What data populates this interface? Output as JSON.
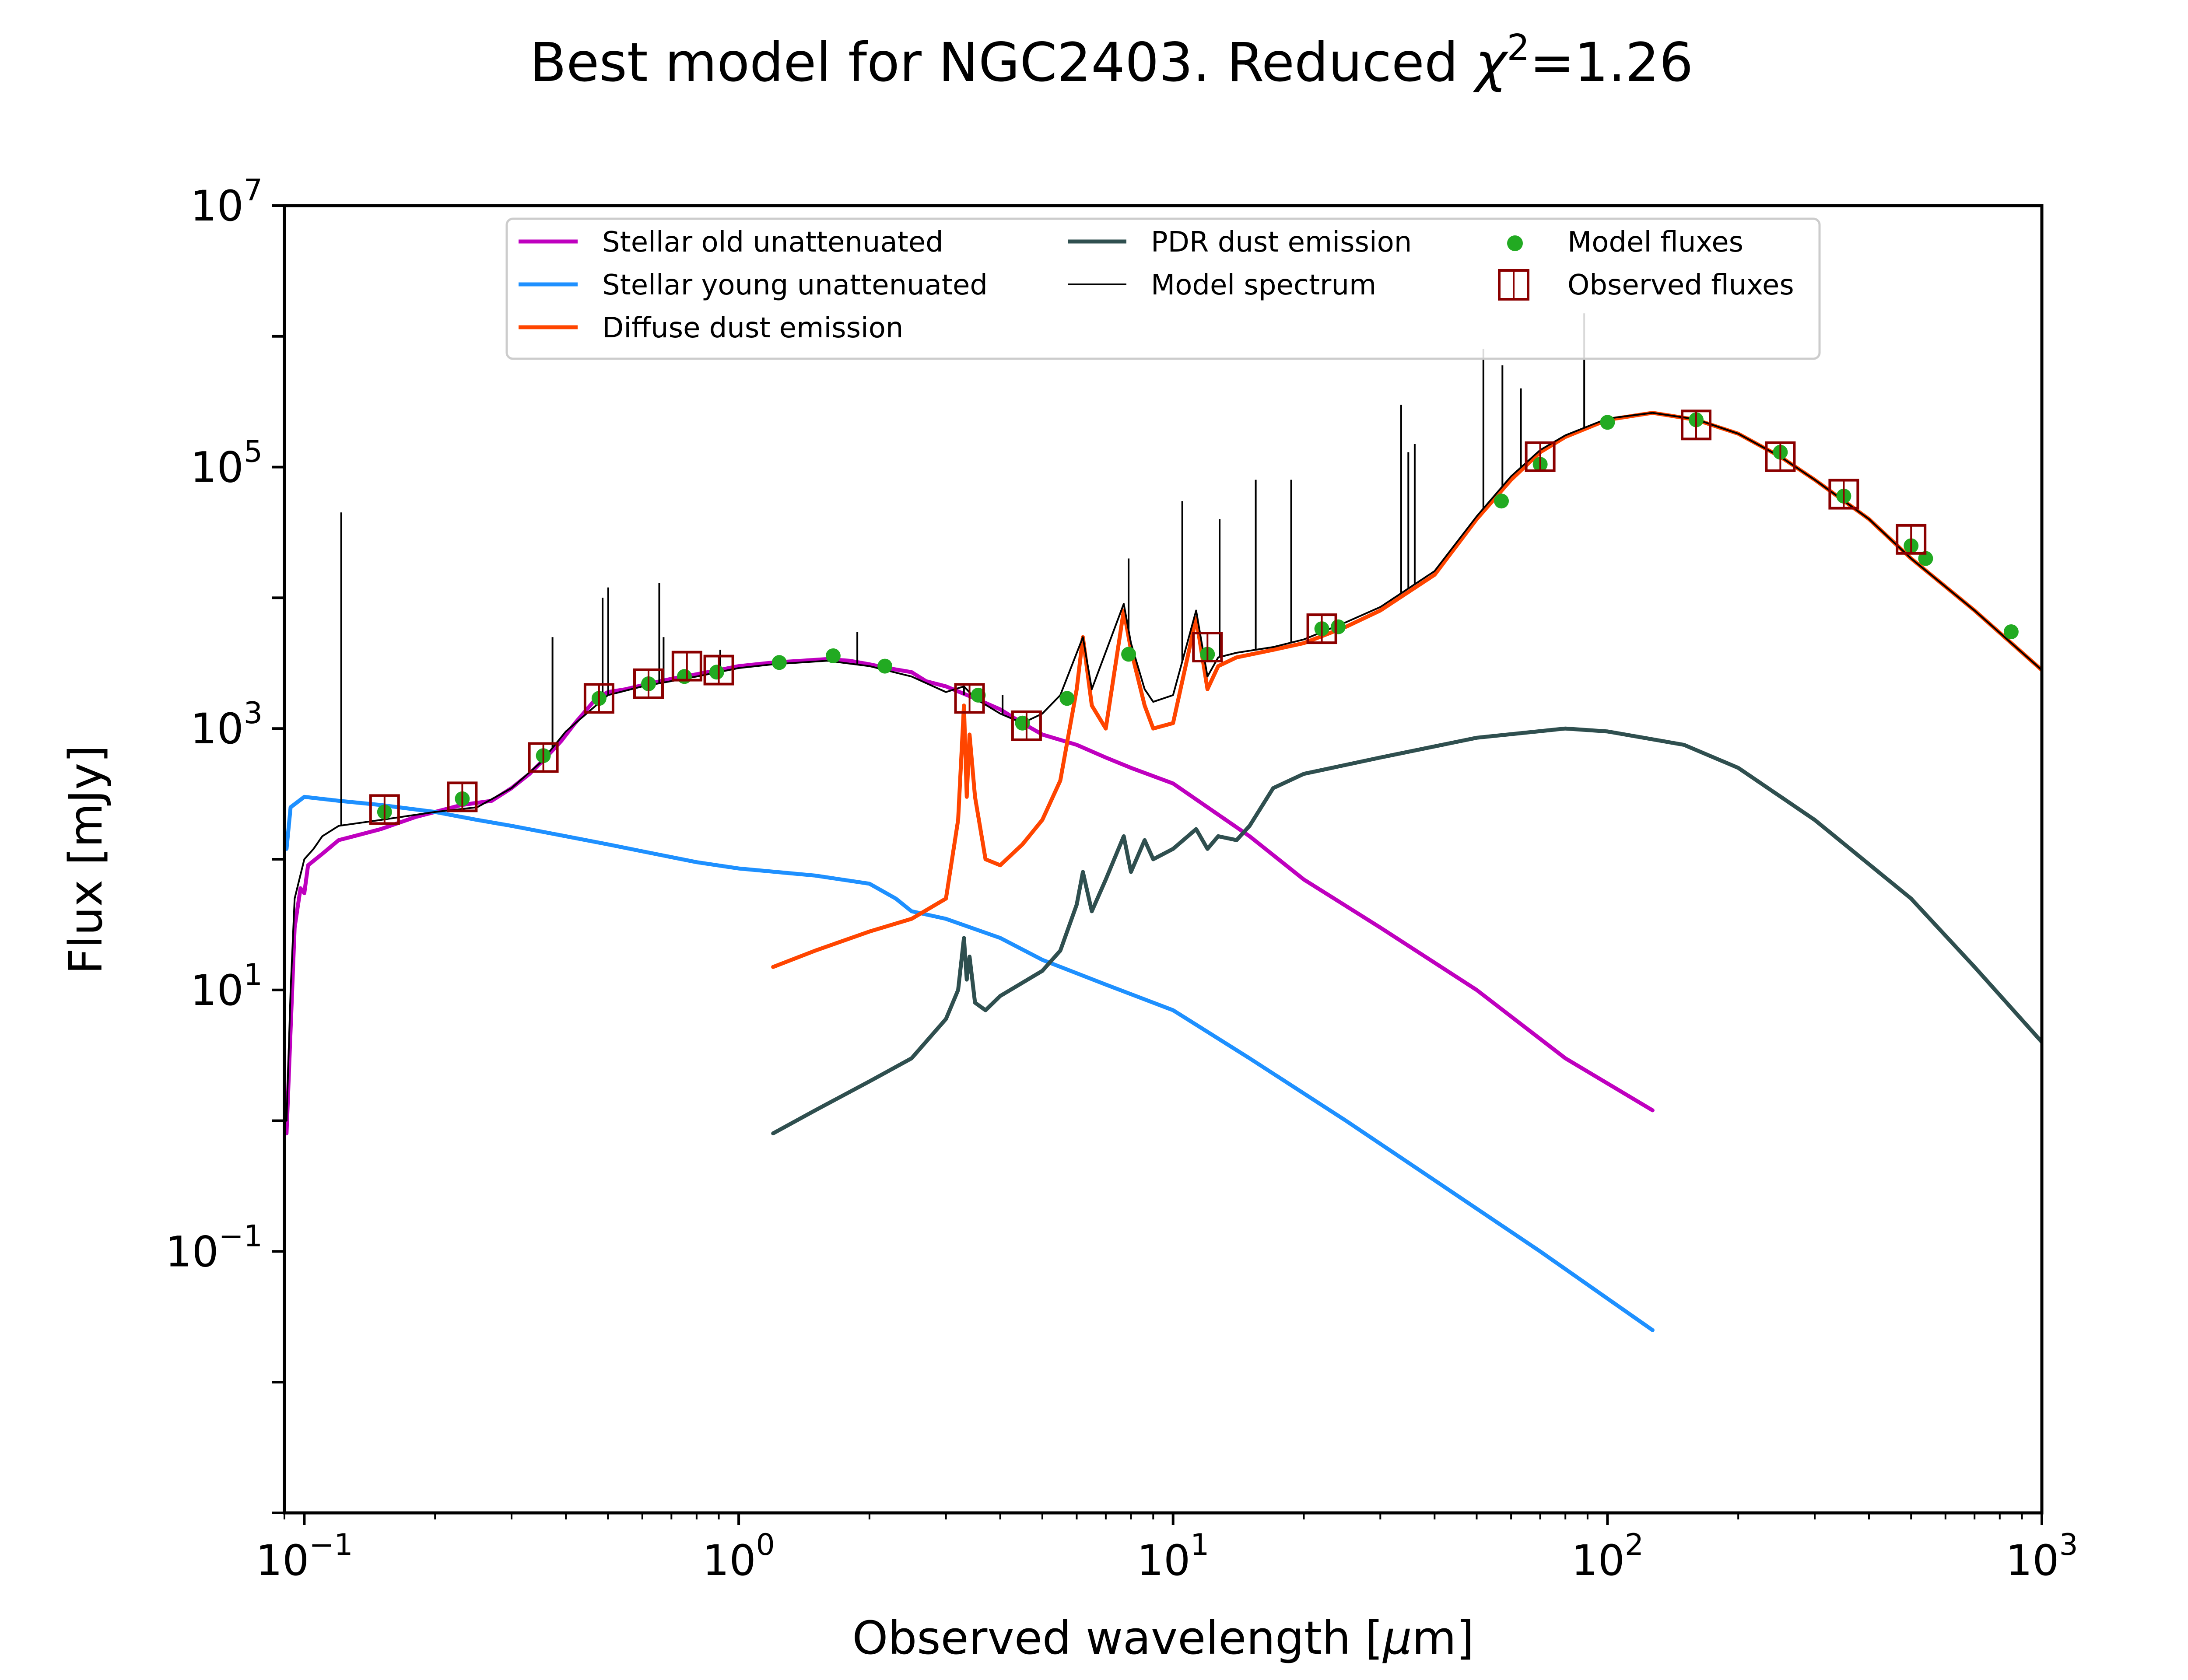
{
  "chart_data": {
    "type": "line",
    "title": "Best model for NGC2403. Reduced χ²=1.26",
    "title_parts": {
      "prefix": "Best model for NGC2403. Reduced ",
      "chi": "χ",
      "sup": "2",
      "suffix": "=1.26"
    },
    "xlabel": "Observed wavelength [μm]",
    "xlabel_parts": {
      "prefix": "Observed wavelength [",
      "mu": "μ",
      "suffix": "m]"
    },
    "ylabel": "Flux [mJy]",
    "xscale": "log",
    "yscale": "log",
    "xlim": [
      0.09,
      1000
    ],
    "ylim": [
      0.001,
      10000000
    ],
    "xticks": [
      {
        "value": 0.1,
        "base": "10",
        "exp": "−1"
      },
      {
        "value": 1,
        "base": "10",
        "exp": "0"
      },
      {
        "value": 10,
        "base": "10",
        "exp": "1"
      },
      {
        "value": 100,
        "base": "10",
        "exp": "2"
      },
      {
        "value": 1000,
        "base": "10",
        "exp": "3"
      }
    ],
    "yticks": [
      {
        "value": 0.1,
        "base": "10",
        "exp": "−1"
      },
      {
        "value": 10,
        "base": "10",
        "exp": "1"
      },
      {
        "value": 1000,
        "base": "10",
        "exp": "3"
      },
      {
        "value": 100000,
        "base": "10",
        "exp": "5"
      },
      {
        "value": 10000000,
        "base": "10",
        "exp": "7"
      }
    ],
    "grid": false,
    "legend_position": "top",
    "series": [
      {
        "name": "Stellar old unattenuated",
        "color": "#bf00bf",
        "kind": "line",
        "points": [
          [
            0.091,
            0.8
          ],
          [
            0.093,
            5
          ],
          [
            0.095,
            30
          ],
          [
            0.098,
            60
          ],
          [
            0.1,
            55
          ],
          [
            0.102,
            90
          ],
          [
            0.11,
            110
          ],
          [
            0.12,
            140
          ],
          [
            0.13,
            150
          ],
          [
            0.15,
            170
          ],
          [
            0.18,
            210
          ],
          [
            0.2,
            230
          ],
          [
            0.23,
            260
          ],
          [
            0.27,
            280
          ],
          [
            0.3,
            350
          ],
          [
            0.33,
            450
          ],
          [
            0.36,
            600
          ],
          [
            0.39,
            800
          ],
          [
            0.42,
            1100
          ],
          [
            0.47,
            1700
          ],
          [
            0.5,
            1900
          ],
          [
            0.55,
            2000
          ],
          [
            0.62,
            2200
          ],
          [
            0.7,
            2400
          ],
          [
            0.8,
            2600
          ],
          [
            0.9,
            2800
          ],
          [
            1.0,
            3000
          ],
          [
            1.2,
            3200
          ],
          [
            1.4,
            3300
          ],
          [
            1.6,
            3400
          ],
          [
            1.8,
            3300
          ],
          [
            2.0,
            3100
          ],
          [
            2.2,
            2900
          ],
          [
            2.5,
            2700
          ],
          [
            2.7,
            2300
          ],
          [
            3.0,
            2100
          ],
          [
            3.5,
            1700
          ],
          [
            4.0,
            1400
          ],
          [
            4.5,
            1100
          ],
          [
            5.0,
            900
          ],
          [
            6.0,
            750
          ],
          [
            7.0,
            600
          ],
          [
            8.0,
            500
          ],
          [
            10.0,
            380
          ],
          [
            12.0,
            250
          ],
          [
            15.0,
            150
          ],
          [
            20.0,
            70
          ],
          [
            30.0,
            30
          ],
          [
            50.0,
            10
          ],
          [
            80.0,
            3
          ],
          [
            127.0,
            1.2
          ]
        ]
      },
      {
        "name": "Stellar young unattenuated",
        "color": "#1e90ff",
        "kind": "line",
        "points": [
          [
            0.091,
            120
          ],
          [
            0.093,
            250
          ],
          [
            0.1,
            300
          ],
          [
            0.12,
            280
          ],
          [
            0.15,
            260
          ],
          [
            0.2,
            230
          ],
          [
            0.25,
            200
          ],
          [
            0.3,
            180
          ],
          [
            0.4,
            150
          ],
          [
            0.5,
            130
          ],
          [
            0.6,
            115
          ],
          [
            0.8,
            95
          ],
          [
            1.0,
            85
          ],
          [
            1.5,
            75
          ],
          [
            2.0,
            65
          ],
          [
            2.3,
            50
          ],
          [
            2.5,
            40
          ],
          [
            3.0,
            35
          ],
          [
            4.0,
            25
          ],
          [
            5.0,
            17
          ],
          [
            7.0,
            11
          ],
          [
            10.0,
            7
          ],
          [
            15.0,
            3
          ],
          [
            25.0,
            1.0
          ],
          [
            40.0,
            0.35
          ],
          [
            70.0,
            0.1
          ],
          [
            127.0,
            0.025
          ]
        ]
      },
      {
        "name": "Diffuse dust emission",
        "color": "#ff4500",
        "kind": "line",
        "points": [
          [
            1.2,
            15
          ],
          [
            1.5,
            20
          ],
          [
            2.0,
            28
          ],
          [
            2.5,
            35
          ],
          [
            3.0,
            50
          ],
          [
            3.2,
            200
          ],
          [
            3.3,
            1500
          ],
          [
            3.35,
            300
          ],
          [
            3.4,
            900
          ],
          [
            3.5,
            300
          ],
          [
            3.7,
            100
          ],
          [
            4.0,
            90
          ],
          [
            4.5,
            130
          ],
          [
            5.0,
            200
          ],
          [
            5.5,
            400
          ],
          [
            6.0,
            2000
          ],
          [
            6.2,
            5000
          ],
          [
            6.5,
            1500
          ],
          [
            7.0,
            1000
          ],
          [
            7.7,
            8000
          ],
          [
            8.0,
            4000
          ],
          [
            8.6,
            1500
          ],
          [
            9.0,
            1000
          ],
          [
            10.0,
            1100
          ],
          [
            11.3,
            7000
          ],
          [
            12.0,
            2000
          ],
          [
            12.7,
            3000
          ],
          [
            14.0,
            3500
          ],
          [
            17.0,
            4000
          ],
          [
            20.0,
            4500
          ],
          [
            25.0,
            6000
          ],
          [
            30.0,
            8000
          ],
          [
            40.0,
            15000
          ],
          [
            50.0,
            40000
          ],
          [
            60.0,
            80000
          ],
          [
            70.0,
            130000
          ],
          [
            80.0,
            170000
          ],
          [
            100.0,
            230000
          ],
          [
            127.0,
            260000
          ],
          [
            160.0,
            230000
          ],
          [
            200.0,
            180000
          ],
          [
            250.0,
            120000
          ],
          [
            300.0,
            80000
          ],
          [
            400.0,
            40000
          ],
          [
            500.0,
            20000
          ],
          [
            700.0,
            8000
          ],
          [
            1000.0,
            2800
          ]
        ]
      },
      {
        "name": "PDR dust emission",
        "color": "#2f4f4f",
        "kind": "line",
        "points": [
          [
            1.2,
            0.8
          ],
          [
            1.5,
            1.2
          ],
          [
            2.0,
            2.0
          ],
          [
            2.5,
            3.0
          ],
          [
            3.0,
            6.0
          ],
          [
            3.2,
            10
          ],
          [
            3.3,
            25
          ],
          [
            3.35,
            12
          ],
          [
            3.4,
            18
          ],
          [
            3.5,
            8
          ],
          [
            3.7,
            7
          ],
          [
            4.0,
            9
          ],
          [
            5.0,
            14
          ],
          [
            5.5,
            20
          ],
          [
            6.0,
            45
          ],
          [
            6.2,
            80
          ],
          [
            6.5,
            40
          ],
          [
            7.0,
            70
          ],
          [
            7.7,
            150
          ],
          [
            8.0,
            80
          ],
          [
            8.6,
            140
          ],
          [
            9.0,
            100
          ],
          [
            10.0,
            120
          ],
          [
            11.3,
            170
          ],
          [
            12.0,
            120
          ],
          [
            12.7,
            150
          ],
          [
            14.0,
            140
          ],
          [
            15.0,
            180
          ],
          [
            17.0,
            350
          ],
          [
            20.0,
            450
          ],
          [
            30.0,
            600
          ],
          [
            50.0,
            850
          ],
          [
            80.0,
            1000
          ],
          [
            100.0,
            950
          ],
          [
            150.0,
            750
          ],
          [
            200.0,
            500
          ],
          [
            300.0,
            200
          ],
          [
            500.0,
            50
          ],
          [
            700.0,
            15
          ],
          [
            1000.0,
            4
          ]
        ]
      },
      {
        "name": "Model spectrum",
        "color": "#000000",
        "kind": "thin",
        "points": [
          [
            0.091,
            1
          ],
          [
            0.093,
            10
          ],
          [
            0.095,
            50
          ],
          [
            0.1,
            100
          ],
          [
            0.105,
            120
          ],
          [
            0.11,
            150
          ],
          [
            0.12,
            180
          ],
          [
            0.15,
            200
          ],
          [
            0.2,
            230
          ],
          [
            0.25,
            250
          ],
          [
            0.3,
            350
          ],
          [
            0.35,
            550
          ],
          [
            0.4,
            950
          ],
          [
            0.5,
            1800
          ],
          [
            0.6,
            2100
          ],
          [
            0.8,
            2500
          ],
          [
            1.0,
            2900
          ],
          [
            1.2,
            3100
          ],
          [
            1.6,
            3300
          ],
          [
            2.0,
            3000
          ],
          [
            2.5,
            2500
          ],
          [
            3.0,
            1900
          ],
          [
            3.3,
            2100
          ],
          [
            3.5,
            1700
          ],
          [
            4.0,
            1300
          ],
          [
            4.5,
            1100
          ],
          [
            5.0,
            1300
          ],
          [
            5.5,
            1800
          ],
          [
            6.2,
            5000
          ],
          [
            6.5,
            2000
          ],
          [
            7.7,
            9000
          ],
          [
            8.0,
            4500
          ],
          [
            8.6,
            2000
          ],
          [
            9.0,
            1600
          ],
          [
            10.0,
            1800
          ],
          [
            11.3,
            8000
          ],
          [
            12.0,
            2500
          ],
          [
            12.7,
            3500
          ],
          [
            14.0,
            3800
          ],
          [
            17.0,
            4200
          ],
          [
            20.0,
            4800
          ],
          [
            25.0,
            6500
          ],
          [
            30.0,
            8500
          ],
          [
            40.0,
            16000
          ],
          [
            50.0,
            42000
          ],
          [
            60.0,
            85000
          ],
          [
            70.0,
            135000
          ],
          [
            80.0,
            175000
          ],
          [
            100.0,
            235000
          ],
          [
            127.0,
            260000
          ],
          [
            160.0,
            232000
          ],
          [
            200.0,
            180000
          ],
          [
            250.0,
            120000
          ],
          [
            300.0,
            80000
          ],
          [
            400.0,
            40000
          ],
          [
            500.0,
            20000
          ],
          [
            700.0,
            8000
          ],
          [
            1000.0,
            2800
          ]
        ]
      }
    ],
    "emission_lines": [
      [
        0.1216,
        45000
      ],
      [
        0.3727,
        5000
      ],
      [
        0.4861,
        10000
      ],
      [
        0.5007,
        12000
      ],
      [
        0.6563,
        13000
      ],
      [
        0.6716,
        5000
      ],
      [
        0.9069,
        4000
      ],
      [
        1.875,
        5500
      ],
      [
        3.3,
        1800
      ],
      [
        4.05,
        1800
      ],
      [
        7.9,
        20000
      ],
      [
        10.5,
        55000
      ],
      [
        12.8,
        40000
      ],
      [
        15.5,
        80000
      ],
      [
        18.7,
        80000
      ],
      [
        33.5,
        300000
      ],
      [
        34.8,
        130000
      ],
      [
        36.0,
        150000
      ],
      [
        51.8,
        800000
      ],
      [
        57.3,
        600000
      ],
      [
        63.2,
        400000
      ],
      [
        88.4,
        1500000
      ]
    ],
    "model_fluxes": {
      "name": "Model fluxes",
      "color": "#22aa22",
      "points": [
        [
          0.153,
          230
        ],
        [
          0.231,
          290
        ],
        [
          0.355,
          620
        ],
        [
          0.477,
          1700
        ],
        [
          0.62,
          2200
        ],
        [
          0.75,
          2500
        ],
        [
          0.89,
          2700
        ],
        [
          1.24,
          3200
        ],
        [
          1.65,
          3600
        ],
        [
          2.17,
          3000
        ],
        [
          3.56,
          1800
        ],
        [
          4.5,
          1100
        ],
        [
          5.7,
          1700
        ],
        [
          7.9,
          3700
        ],
        [
          12.0,
          3700
        ],
        [
          22.0,
          5800
        ],
        [
          24.0,
          6000
        ],
        [
          57.0,
          55000
        ],
        [
          70.0,
          105000
        ],
        [
          100.0,
          220000
        ],
        [
          160.0,
          230000
        ],
        [
          250.0,
          130000
        ],
        [
          350.0,
          60000
        ],
        [
          500.0,
          25000
        ],
        [
          540.0,
          20000
        ],
        [
          850.0,
          5500
        ]
      ]
    },
    "observed_fluxes": {
      "name": "Observed fluxes",
      "color": "#8b0000",
      "points": [
        [
          0.153,
          240
        ],
        [
          0.231,
          300
        ],
        [
          0.355,
          600
        ],
        [
          0.477,
          1700
        ],
        [
          0.62,
          2200
        ],
        [
          0.76,
          3000
        ],
        [
          0.9,
          2800
        ],
        [
          3.4,
          1700
        ],
        [
          4.6,
          1050
        ],
        [
          12.0,
          4200
        ],
        [
          22.0,
          5800
        ],
        [
          70.0,
          120000
        ],
        [
          160.0,
          210000
        ],
        [
          250.0,
          120000
        ],
        [
          350.0,
          62000
        ],
        [
          500.0,
          28000
        ]
      ]
    }
  }
}
